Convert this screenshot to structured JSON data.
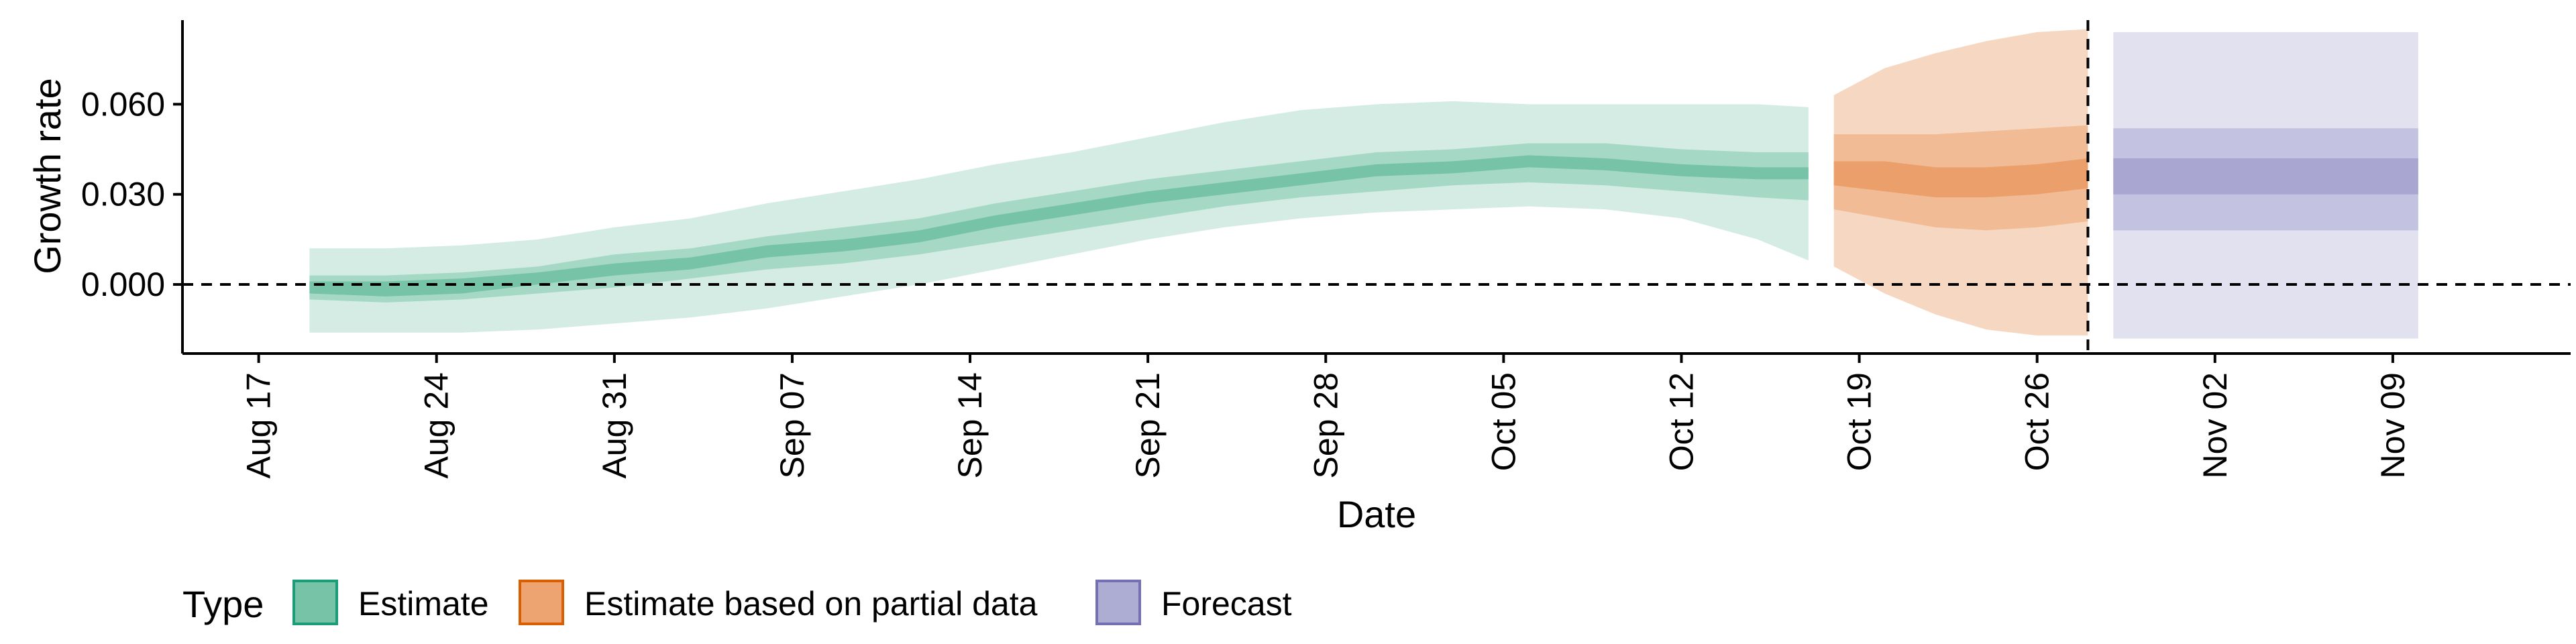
{
  "chart_data": {
    "type": "area",
    "xlabel": "Date",
    "ylabel": "Growth rate",
    "x_range": [
      "2020-08-14",
      "2020-11-16"
    ],
    "ylim": [
      -0.023,
      0.088
    ],
    "y_ticks": [
      0.0,
      0.03,
      0.06
    ],
    "y_tick_labels": [
      "0.000",
      "0.030",
      "0.060"
    ],
    "x_ticks": [
      "2020-08-17",
      "2020-08-24",
      "2020-08-31",
      "2020-09-07",
      "2020-09-14",
      "2020-09-21",
      "2020-09-28",
      "2020-10-05",
      "2020-10-12",
      "2020-10-19",
      "2020-10-26",
      "2020-11-02",
      "2020-11-09"
    ],
    "x_tick_labels": [
      "Aug 17",
      "Aug 24",
      "Aug 31",
      "Sep 07",
      "Sep 14",
      "Sep 21",
      "Sep 28",
      "Oct 05",
      "Oct 12",
      "Oct 19",
      "Oct 26",
      "Nov 02",
      "Nov 09"
    ],
    "reference_lines": [
      {
        "axis": "y",
        "value": 0.0,
        "style": "dashed"
      },
      {
        "axis": "x",
        "value": "2020-10-28",
        "style": "dashed"
      }
    ],
    "legend": {
      "title": "Type",
      "position": "bottom-left",
      "entries": [
        {
          "label": "Estimate",
          "fill": "#76C3A8",
          "stroke": "#1B9E77"
        },
        {
          "label": "Estimate based on partial data",
          "fill": "#EEA470",
          "stroke": "#D95F02"
        },
        {
          "label": "Forecast",
          "fill": "#ADACD3",
          "stroke": "#7570B3"
        }
      ]
    },
    "series": [
      {
        "type": "Estimate",
        "colors": {
          "outer": "#D4ECE3",
          "mid": "#A5D8C5",
          "inner": "#76C3A8"
        },
        "x": [
          "2020-08-19",
          "2020-08-22",
          "2020-08-25",
          "2020-08-28",
          "2020-08-31",
          "2020-09-03",
          "2020-09-06",
          "2020-09-09",
          "2020-09-12",
          "2020-09-15",
          "2020-09-18",
          "2020-09-21",
          "2020-09-24",
          "2020-09-27",
          "2020-09-30",
          "2020-10-03",
          "2020-10-06",
          "2020-10-09",
          "2020-10-12",
          "2020-10-15",
          "2020-10-17"
        ],
        "median": [
          -0.001,
          -0.002,
          -0.001,
          0.002,
          0.005,
          0.007,
          0.011,
          0.013,
          0.016,
          0.021,
          0.025,
          0.029,
          0.032,
          0.035,
          0.038,
          0.039,
          0.041,
          0.04,
          0.038,
          0.037,
          0.037
        ],
        "lower_90": [
          -0.016,
          -0.016,
          -0.016,
          -0.015,
          -0.013,
          -0.011,
          -0.008,
          -0.004,
          0.0,
          0.005,
          0.01,
          0.015,
          0.019,
          0.022,
          0.024,
          0.025,
          0.026,
          0.025,
          0.022,
          0.015,
          0.008
        ],
        "upper_90": [
          0.012,
          0.012,
          0.013,
          0.015,
          0.019,
          0.022,
          0.027,
          0.031,
          0.035,
          0.04,
          0.044,
          0.049,
          0.054,
          0.058,
          0.06,
          0.061,
          0.06,
          0.06,
          0.06,
          0.06,
          0.059
        ],
        "lower_50": [
          -0.005,
          -0.006,
          -0.005,
          -0.003,
          -0.001,
          0.002,
          0.005,
          0.007,
          0.01,
          0.014,
          0.018,
          0.022,
          0.026,
          0.029,
          0.031,
          0.033,
          0.034,
          0.033,
          0.031,
          0.029,
          0.028
        ],
        "upper_50": [
          0.003,
          0.003,
          0.004,
          0.006,
          0.01,
          0.012,
          0.016,
          0.019,
          0.022,
          0.027,
          0.031,
          0.035,
          0.038,
          0.041,
          0.044,
          0.045,
          0.047,
          0.047,
          0.045,
          0.044,
          0.044
        ],
        "lower_20": [
          -0.003,
          -0.004,
          -0.003,
          0.0,
          0.003,
          0.005,
          0.009,
          0.011,
          0.014,
          0.019,
          0.023,
          0.027,
          0.03,
          0.033,
          0.036,
          0.037,
          0.039,
          0.038,
          0.036,
          0.035,
          0.035
        ],
        "upper_20": [
          0.001,
          0.001,
          0.002,
          0.004,
          0.007,
          0.009,
          0.013,
          0.015,
          0.018,
          0.023,
          0.027,
          0.031,
          0.034,
          0.037,
          0.04,
          0.041,
          0.043,
          0.042,
          0.04,
          0.039,
          0.039
        ]
      },
      {
        "type": "Estimate based on partial data",
        "colors": {
          "outer": "#F6D8C2",
          "mid": "#F1BC95",
          "inner": "#EBA06B"
        },
        "x": [
          "2020-10-18",
          "2020-10-20",
          "2020-10-22",
          "2020-10-24",
          "2020-10-26",
          "2020-10-28"
        ],
        "median": [
          0.037,
          0.036,
          0.034,
          0.034,
          0.035,
          0.037
        ],
        "lower_90": [
          0.006,
          -0.003,
          -0.01,
          -0.015,
          -0.017,
          -0.017
        ],
        "upper_90": [
          0.063,
          0.072,
          0.077,
          0.081,
          0.084,
          0.085
        ],
        "lower_50": [
          0.025,
          0.022,
          0.019,
          0.018,
          0.019,
          0.021
        ],
        "upper_50": [
          0.05,
          0.05,
          0.05,
          0.051,
          0.052,
          0.053
        ],
        "lower_20": [
          0.033,
          0.031,
          0.029,
          0.029,
          0.03,
          0.032
        ],
        "upper_20": [
          0.041,
          0.041,
          0.039,
          0.039,
          0.04,
          0.042
        ]
      },
      {
        "type": "Forecast",
        "colors": {
          "outer": "#E1E1EF",
          "mid": "#C3C2E0",
          "inner": "#A9A7D1"
        },
        "x": [
          "2020-10-29",
          "2020-11-10"
        ],
        "median": [
          0.036,
          0.036
        ],
        "lower_90": [
          -0.018,
          -0.018
        ],
        "upper_90": [
          0.084,
          0.084
        ],
        "lower_50": [
          0.018,
          0.018
        ],
        "upper_50": [
          0.052,
          0.052
        ],
        "lower_20": [
          0.03,
          0.03
        ],
        "upper_20": [
          0.042,
          0.042
        ]
      }
    ]
  }
}
